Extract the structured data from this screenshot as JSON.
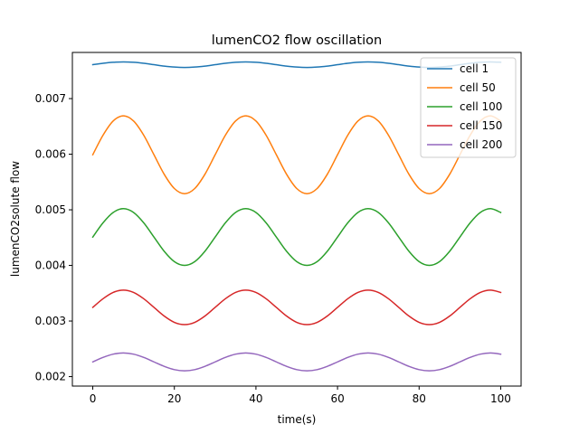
{
  "chart_data": {
    "type": "line",
    "title": "lumenCO2 flow oscillation",
    "xlabel": "time(s)",
    "ylabel": "lumenCO2solute flow",
    "xlim": [
      -5,
      105
    ],
    "ylim": [
      0.00183,
      0.00783
    ],
    "xticks": [
      0,
      20,
      40,
      60,
      80,
      100
    ],
    "xtick_labels": [
      "0",
      "20",
      "40",
      "60",
      "80",
      "100"
    ],
    "yticks": [
      0.002,
      0.003,
      0.004,
      0.005,
      0.006,
      0.007
    ],
    "ytick_labels": [
      "0.002",
      "0.003",
      "0.004",
      "0.005",
      "0.006",
      "0.007"
    ],
    "grid": false,
    "legend_position": "top-right",
    "x": [
      0,
      2.5,
      5,
      7.5,
      10,
      12.5,
      15,
      17.5,
      20,
      22.5,
      25,
      27.5,
      30,
      32.5,
      35,
      37.5,
      40,
      42.5,
      45,
      47.5,
      50,
      52.5,
      55,
      57.5,
      60,
      62.5,
      65,
      67.5,
      70,
      72.5,
      75,
      77.5,
      80,
      82.5,
      85,
      87.5,
      90,
      92.5,
      95,
      97.5,
      100
    ],
    "series": [
      {
        "name": "cell 1",
        "color": "#1f77b4",
        "values": [
          0.00761,
          0.007635,
          0.007653,
          0.00766,
          0.007653,
          0.007635,
          0.00761,
          0.007585,
          0.007567,
          0.00756,
          0.007567,
          0.007585,
          0.00761,
          0.007635,
          0.007653,
          0.00766,
          0.007653,
          0.007635,
          0.00761,
          0.007585,
          0.007567,
          0.00756,
          0.007567,
          0.007585,
          0.00761,
          0.007635,
          0.007653,
          0.00766,
          0.007653,
          0.007635,
          0.00761,
          0.007585,
          0.007567,
          0.00756,
          0.007567,
          0.007585,
          0.00761,
          0.007635,
          0.007653,
          0.00766,
          0.007653
        ]
      },
      {
        "name": "cell 50",
        "color": "#ff7f0e",
        "values": [
          0.00599,
          0.00634,
          0.006597,
          0.00669,
          0.006597,
          0.00634,
          0.00599,
          0.00564,
          0.005383,
          0.00529,
          0.005383,
          0.00564,
          0.00599,
          0.00634,
          0.006597,
          0.00669,
          0.006597,
          0.00634,
          0.00599,
          0.00564,
          0.005383,
          0.00529,
          0.005383,
          0.00564,
          0.00599,
          0.00634,
          0.006597,
          0.00669,
          0.006597,
          0.00634,
          0.00599,
          0.00564,
          0.005383,
          0.00529,
          0.005383,
          0.00564,
          0.00599,
          0.00634,
          0.006597,
          0.00669,
          0.006597
        ]
      },
      {
        "name": "cell 100",
        "color": "#2ca02c",
        "values": [
          0.00451,
          0.004765,
          0.004952,
          0.00502,
          0.004952,
          0.004765,
          0.00451,
          0.004255,
          0.004068,
          0.004,
          0.004068,
          0.004255,
          0.00451,
          0.004765,
          0.004952,
          0.00502,
          0.004952,
          0.004765,
          0.00451,
          0.004255,
          0.004068,
          0.004,
          0.004068,
          0.004255,
          0.00451,
          0.004765,
          0.004952,
          0.00502,
          0.004952,
          0.004765,
          0.00451,
          0.004255,
          0.004068,
          0.004,
          0.004068,
          0.004255,
          0.00451,
          0.004765,
          0.004952,
          0.00502,
          0.004952
        ]
      },
      {
        "name": "cell 150",
        "color": "#d62728",
        "values": [
          0.003245,
          0.0034,
          0.003514,
          0.003555,
          0.003514,
          0.0034,
          0.003245,
          0.00309,
          0.002976,
          0.002935,
          0.002976,
          0.00309,
          0.003245,
          0.0034,
          0.003514,
          0.003555,
          0.003514,
          0.0034,
          0.003245,
          0.00309,
          0.002976,
          0.002935,
          0.002976,
          0.00309,
          0.003245,
          0.0034,
          0.003514,
          0.003555,
          0.003514,
          0.0034,
          0.003245,
          0.00309,
          0.002976,
          0.002935,
          0.002976,
          0.00309,
          0.003245,
          0.0034,
          0.003514,
          0.003555,
          0.003514
        ]
      },
      {
        "name": "cell 200",
        "color": "#9467bd",
        "values": [
          0.002265,
          0.002345,
          0.002404,
          0.002425,
          0.002404,
          0.002345,
          0.002265,
          0.002185,
          0.002126,
          0.002105,
          0.002126,
          0.002185,
          0.002265,
          0.002345,
          0.002404,
          0.002425,
          0.002404,
          0.002345,
          0.002265,
          0.002185,
          0.002126,
          0.002105,
          0.002126,
          0.002185,
          0.002265,
          0.002345,
          0.002404,
          0.002425,
          0.002404,
          0.002345,
          0.002265,
          0.002185,
          0.002126,
          0.002105,
          0.002126,
          0.002185,
          0.002265,
          0.002345,
          0.002404,
          0.002425,
          0.002404
        ]
      }
    ]
  }
}
